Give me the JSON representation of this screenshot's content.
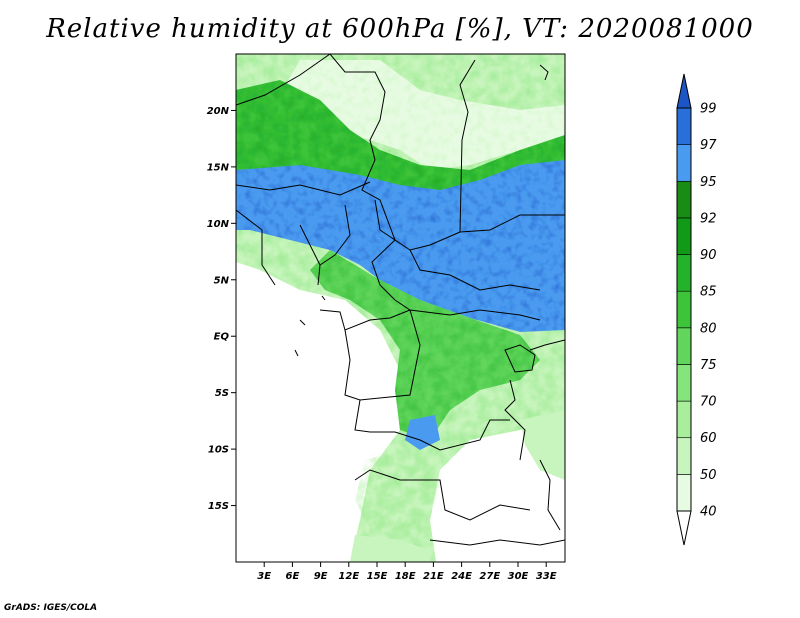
{
  "title": "Relative humidity at 600hPa [%], VT: 2020081000",
  "map": {
    "lat_range": [
      -20,
      25
    ],
    "lon_range": [
      0,
      35
    ],
    "lat_ticks": [
      {
        "value": 20,
        "label": "20N"
      },
      {
        "value": 15,
        "label": "15N"
      },
      {
        "value": 10,
        "label": "10N"
      },
      {
        "value": 5,
        "label": "5N"
      },
      {
        "value": 0,
        "label": "EQ"
      },
      {
        "value": -5,
        "label": "5S"
      },
      {
        "value": -10,
        "label": "10S"
      },
      {
        "value": -15,
        "label": "15S"
      }
    ],
    "lon_ticks": [
      {
        "value": 3,
        "label": "3E"
      },
      {
        "value": 6,
        "label": "6E"
      },
      {
        "value": 9,
        "label": "9E"
      },
      {
        "value": 12,
        "label": "12E"
      },
      {
        "value": 15,
        "label": "15E"
      },
      {
        "value": 18,
        "label": "18E"
      },
      {
        "value": 21,
        "label": "21E"
      },
      {
        "value": 24,
        "label": "24E"
      },
      {
        "value": 27,
        "label": "27E"
      },
      {
        "value": 30,
        "label": "30E"
      },
      {
        "value": 33,
        "label": "33E"
      }
    ]
  },
  "colorbar": {
    "levels": [
      "40",
      "50",
      "60",
      "70",
      "75",
      "80",
      "85",
      "90",
      "92",
      "95",
      "97",
      "99"
    ],
    "colors": [
      "#ffffff",
      "#e6fbe1",
      "#c8f5bd",
      "#a8ee9b",
      "#86e47d",
      "#62d65c",
      "#3ec43b",
      "#24b22a",
      "#109a18",
      "#1a8c16",
      "#4a9bf0",
      "#2a6fd8",
      "#1c56c6"
    ]
  },
  "credit": "GrADS: IGES/COLA"
}
